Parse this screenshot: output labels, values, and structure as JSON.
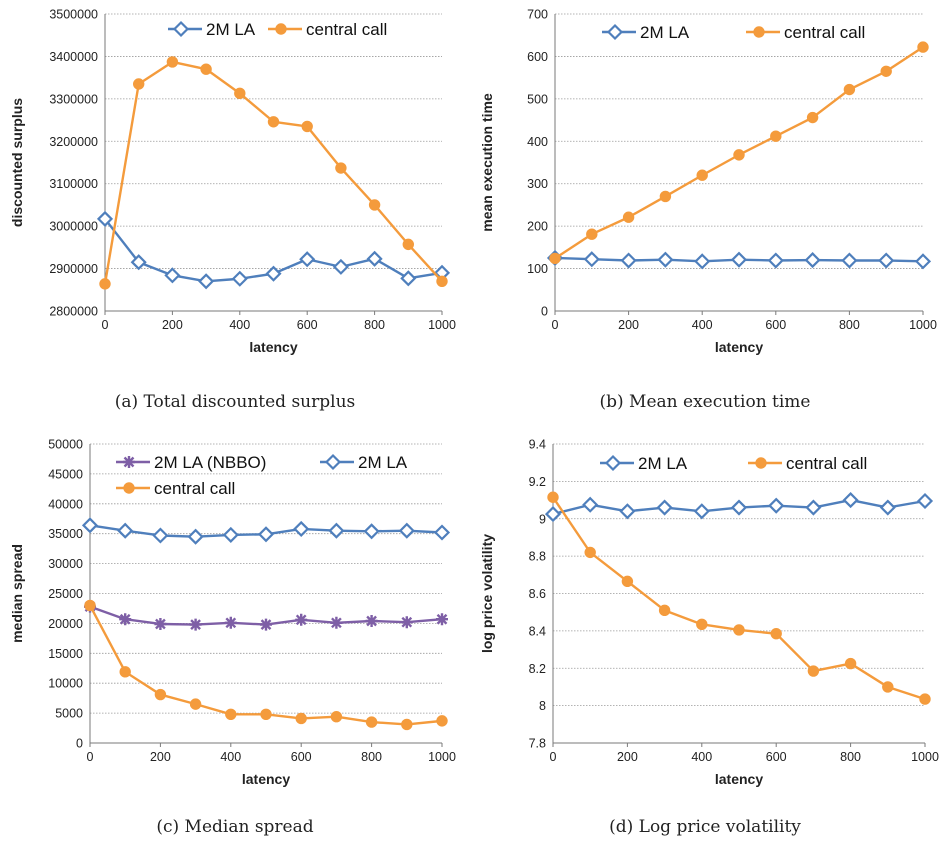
{
  "colors": {
    "blue": "#4F7FBC",
    "orange": "#F49B3C",
    "purple": "#7E5FA6",
    "grid": "#9a9a9a",
    "axis": "#7a7a7a"
  },
  "chart_data": [
    {
      "id": "a",
      "type": "line",
      "caption": "(a)  Total discounted surplus",
      "xlabel": "latency",
      "ylabel": "discounted surplus",
      "x": [
        0,
        100,
        200,
        300,
        400,
        500,
        600,
        700,
        800,
        900,
        1000
      ],
      "xlim": [
        0,
        1000
      ],
      "xticks": [
        "0",
        "200",
        "400",
        "600",
        "800",
        "1000"
      ],
      "ylim": [
        2800000,
        3500000
      ],
      "yticks": [
        "2800000",
        "2900000",
        "3000000",
        "3100000",
        "3200000",
        "3300000",
        "3400000",
        "3500000"
      ],
      "grid": true,
      "legend_position": "top",
      "series": [
        {
          "name": "2M LA",
          "marker": "diamond",
          "color": "#4F7FBC",
          "values": [
            3017000,
            2915000,
            2884000,
            2870000,
            2876000,
            2888000,
            2922000,
            2904000,
            2923000,
            2877000,
            2890000
          ]
        },
        {
          "name": "central call",
          "marker": "circle",
          "color": "#F49B3C",
          "values": [
            2864000,
            3335000,
            3387000,
            3370000,
            3313000,
            3246000,
            3235000,
            3137000,
            3050000,
            2957000,
            2870000
          ]
        }
      ]
    },
    {
      "id": "b",
      "type": "line",
      "caption": "(b)  Mean execution time",
      "xlabel": "latency",
      "ylabel": "mean execution time",
      "x": [
        0,
        100,
        200,
        300,
        400,
        500,
        600,
        700,
        800,
        900,
        1000
      ],
      "xlim": [
        0,
        1000
      ],
      "xticks": [
        "0",
        "200",
        "400",
        "600",
        "800",
        "1000"
      ],
      "ylim": [
        0,
        700
      ],
      "yticks": [
        "0",
        "100",
        "200",
        "300",
        "400",
        "500",
        "600",
        "700"
      ],
      "grid": true,
      "legend_position": "top",
      "series": [
        {
          "name": "2M LA",
          "marker": "diamond",
          "color": "#4F7FBC",
          "values": [
            125,
            122,
            119,
            121,
            117,
            121,
            119,
            120,
            119,
            119,
            117
          ]
        },
        {
          "name": "central call",
          "marker": "circle",
          "color": "#F49B3C",
          "values": [
            124,
            181,
            221,
            270,
            320,
            368,
            412,
            456,
            522,
            565,
            622
          ]
        }
      ]
    },
    {
      "id": "c",
      "type": "line",
      "caption": "(c)  Median spread",
      "xlabel": "latency",
      "ylabel": "median spread",
      "x": [
        0,
        100,
        200,
        300,
        400,
        500,
        600,
        700,
        800,
        900,
        1000
      ],
      "xlim": [
        0,
        1000
      ],
      "xticks": [
        "0",
        "200",
        "400",
        "600",
        "800",
        "1000"
      ],
      "ylim": [
        0,
        50000
      ],
      "yticks": [
        "0",
        "5000",
        "10000",
        "15000",
        "20000",
        "25000",
        "30000",
        "35000",
        "40000",
        "45000",
        "50000"
      ],
      "grid": true,
      "legend_position": "top",
      "series": [
        {
          "name": "2M LA (NBBO)",
          "marker": "star",
          "color": "#7E5FA6",
          "values": [
            22800,
            20700,
            19900,
            19800,
            20100,
            19800,
            20600,
            20100,
            20400,
            20200,
            20700
          ]
        },
        {
          "name": "2M LA",
          "marker": "diamond",
          "color": "#4F7FBC",
          "values": [
            36400,
            35500,
            34700,
            34500,
            34800,
            34900,
            35800,
            35500,
            35400,
            35500,
            35200
          ]
        },
        {
          "name": "central call",
          "marker": "circle",
          "color": "#F49B3C",
          "values": [
            23000,
            11900,
            8100,
            6500,
            4800,
            4800,
            4100,
            4400,
            3500,
            3100,
            3700
          ]
        }
      ]
    },
    {
      "id": "d",
      "type": "line",
      "caption": "(d)  Log price volatility",
      "xlabel": "latency",
      "ylabel": "log price volatility",
      "x": [
        0,
        100,
        200,
        300,
        400,
        500,
        600,
        700,
        800,
        900,
        1000
      ],
      "xlim": [
        0,
        1000
      ],
      "xticks": [
        "0",
        "200",
        "400",
        "600",
        "800",
        "1000"
      ],
      "ylim": [
        7.8,
        9.4
      ],
      "yticks": [
        "7.8",
        "8",
        "8.2",
        "8.4",
        "8.6",
        "8.8",
        "9",
        "9.2",
        "9.4"
      ],
      "grid": true,
      "legend_position": "top",
      "series": [
        {
          "name": "2M LA",
          "marker": "diamond",
          "color": "#4F7FBC",
          "values": [
            9.025,
            9.075,
            9.04,
            9.06,
            9.04,
            9.06,
            9.07,
            9.06,
            9.1,
            9.06,
            9.095
          ]
        },
        {
          "name": "central call",
          "marker": "circle",
          "color": "#F49B3C",
          "values": [
            9.115,
            8.82,
            8.665,
            8.51,
            8.435,
            8.405,
            8.385,
            8.185,
            8.225,
            8.1,
            8.035
          ]
        }
      ]
    }
  ]
}
